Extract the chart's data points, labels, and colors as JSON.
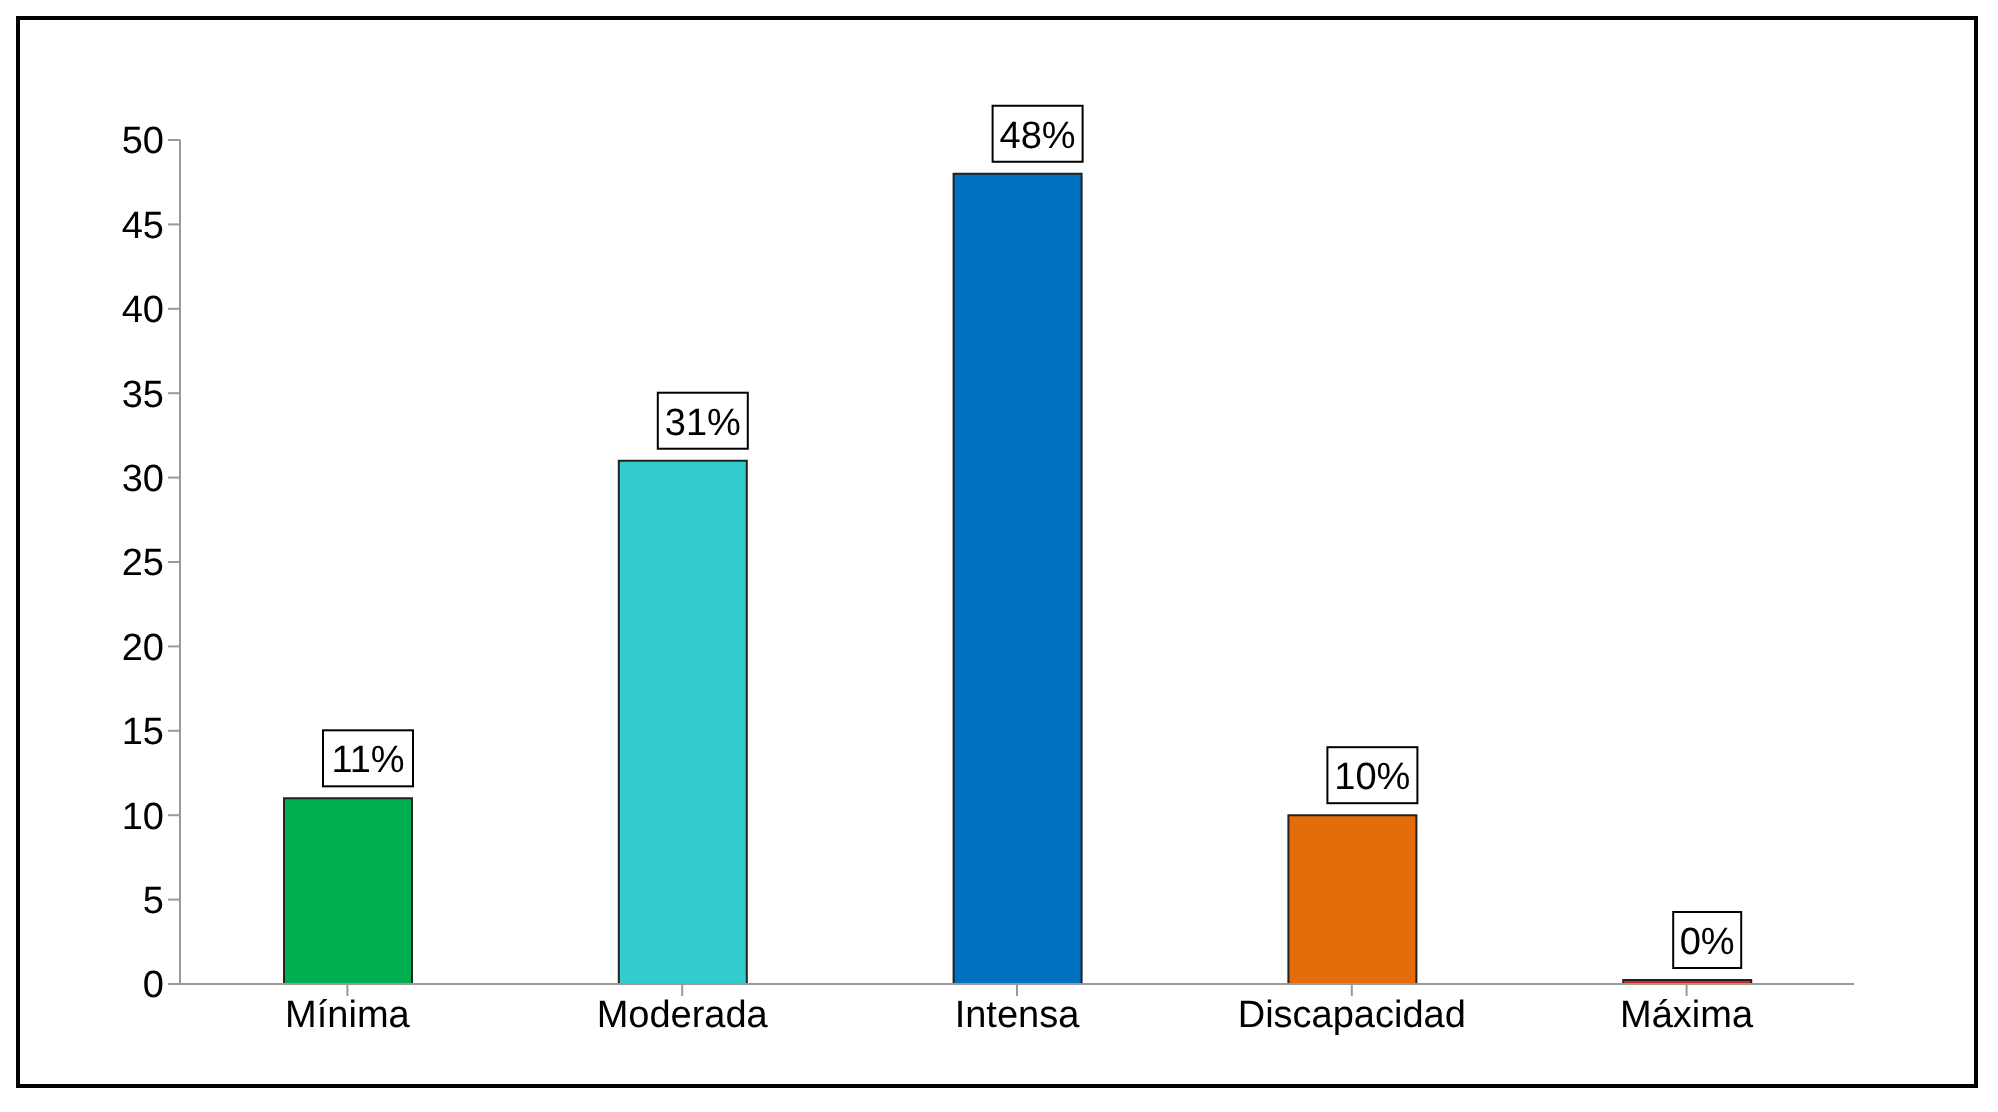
{
  "chart_data": {
    "type": "bar",
    "categories": [
      "Mínima",
      "Moderada",
      "Intensa",
      "Discapacidad",
      "Máxima"
    ],
    "values": [
      11,
      31,
      48,
      10,
      0
    ],
    "colors": [
      "#00b050",
      "#33cccc",
      "#0070c0",
      "#e46c0a",
      "#d62728"
    ],
    "value_labels": [
      "11%",
      "31%",
      "48%",
      "10%",
      "0%"
    ],
    "ylim": [
      0,
      50
    ],
    "yticks": [
      0,
      5,
      10,
      15,
      20,
      25,
      30,
      35,
      40,
      45,
      50
    ],
    "grid": false,
    "legend": false
  }
}
